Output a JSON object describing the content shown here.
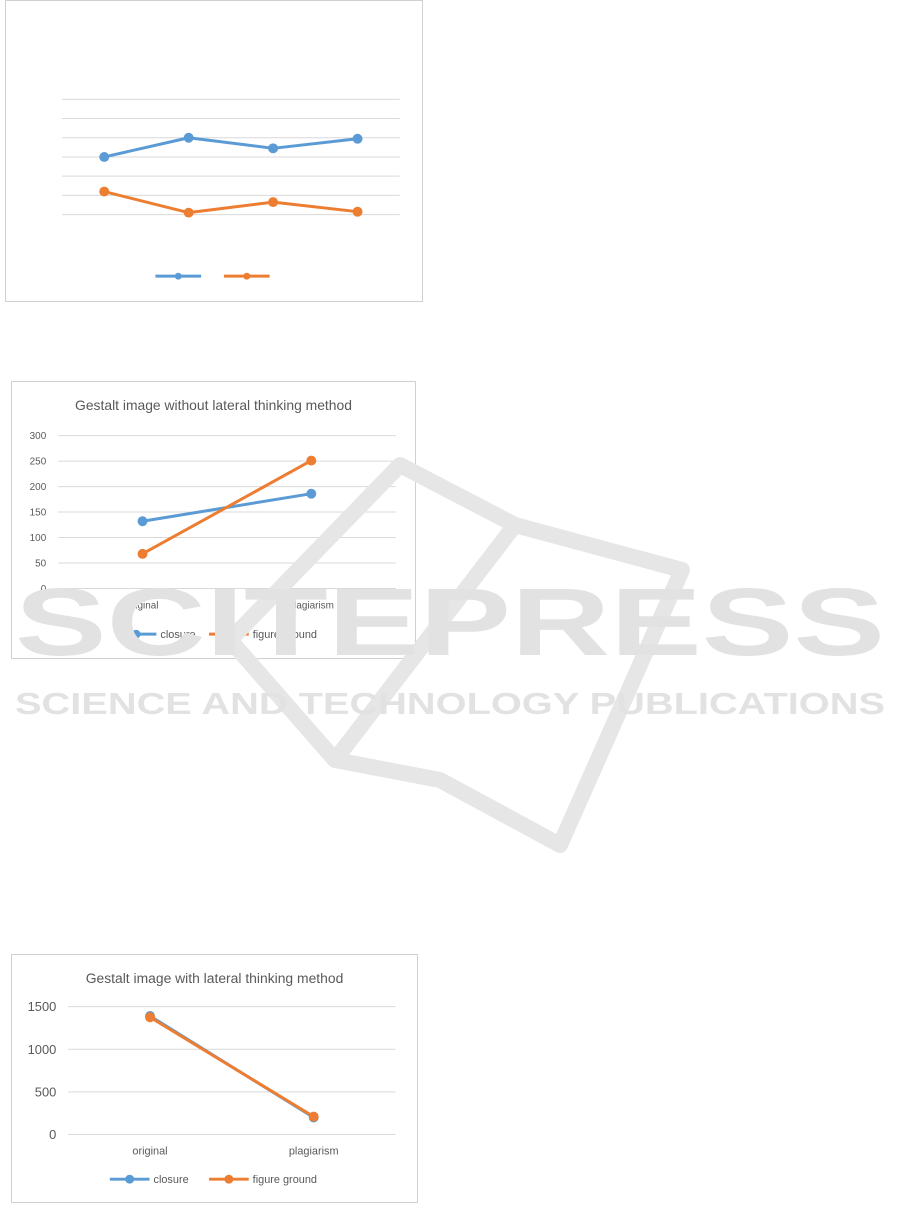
{
  "colors": {
    "closure": "#5b9bd5",
    "figure_ground": "#ed7d31",
    "grid": "#d9d9d9",
    "text": "#595959",
    "watermark": "#e2e2e2"
  },
  "watermark": {
    "line1": "SCITEPRESS",
    "line2": "SCIENCE AND TECHNOLOGY PUBLICATIONS"
  },
  "chart_data": [
    {
      "type": "line",
      "title": "",
      "categories": [
        "",
        "",
        "",
        ""
      ],
      "ylim": [
        0,
        6
      ],
      "grid": true,
      "legend": "bottom",
      "show_axis_labels": false,
      "series": [
        {
          "name": "",
          "color": "#5b9bd5",
          "values": [
            3.0,
            4.0,
            3.45,
            3.95
          ]
        },
        {
          "name": "",
          "color": "#ed7d31",
          "values": [
            1.2,
            0.1,
            0.65,
            0.15
          ]
        }
      ]
    },
    {
      "type": "line",
      "title": "Gestalt image without lateral thinking method",
      "categories": [
        "original",
        "plagiarism"
      ],
      "ylim": [
        0,
        300
      ],
      "yticks": [
        0,
        50,
        100,
        150,
        200,
        250,
        300
      ],
      "grid": true,
      "legend": "bottom",
      "series": [
        {
          "name": "closure",
          "color": "#5b9bd5",
          "values": [
            132,
            186
          ]
        },
        {
          "name": "figure ground",
          "color": "#ed7d31",
          "values": [
            68,
            251
          ]
        }
      ]
    },
    {
      "type": "line",
      "title": "Gestalt image with lateral thinking method",
      "categories": [
        "original",
        "plagiarism"
      ],
      "ylim": [
        0,
        1500
      ],
      "yticks": [
        0,
        500,
        1000,
        1500
      ],
      "grid": true,
      "legend": "bottom",
      "series": [
        {
          "name": "closure",
          "color": "#5b9bd5",
          "values": [
            1390,
            200
          ]
        },
        {
          "name": "figure ground",
          "color": "#ed7d31",
          "values": [
            1375,
            210
          ]
        }
      ]
    }
  ]
}
